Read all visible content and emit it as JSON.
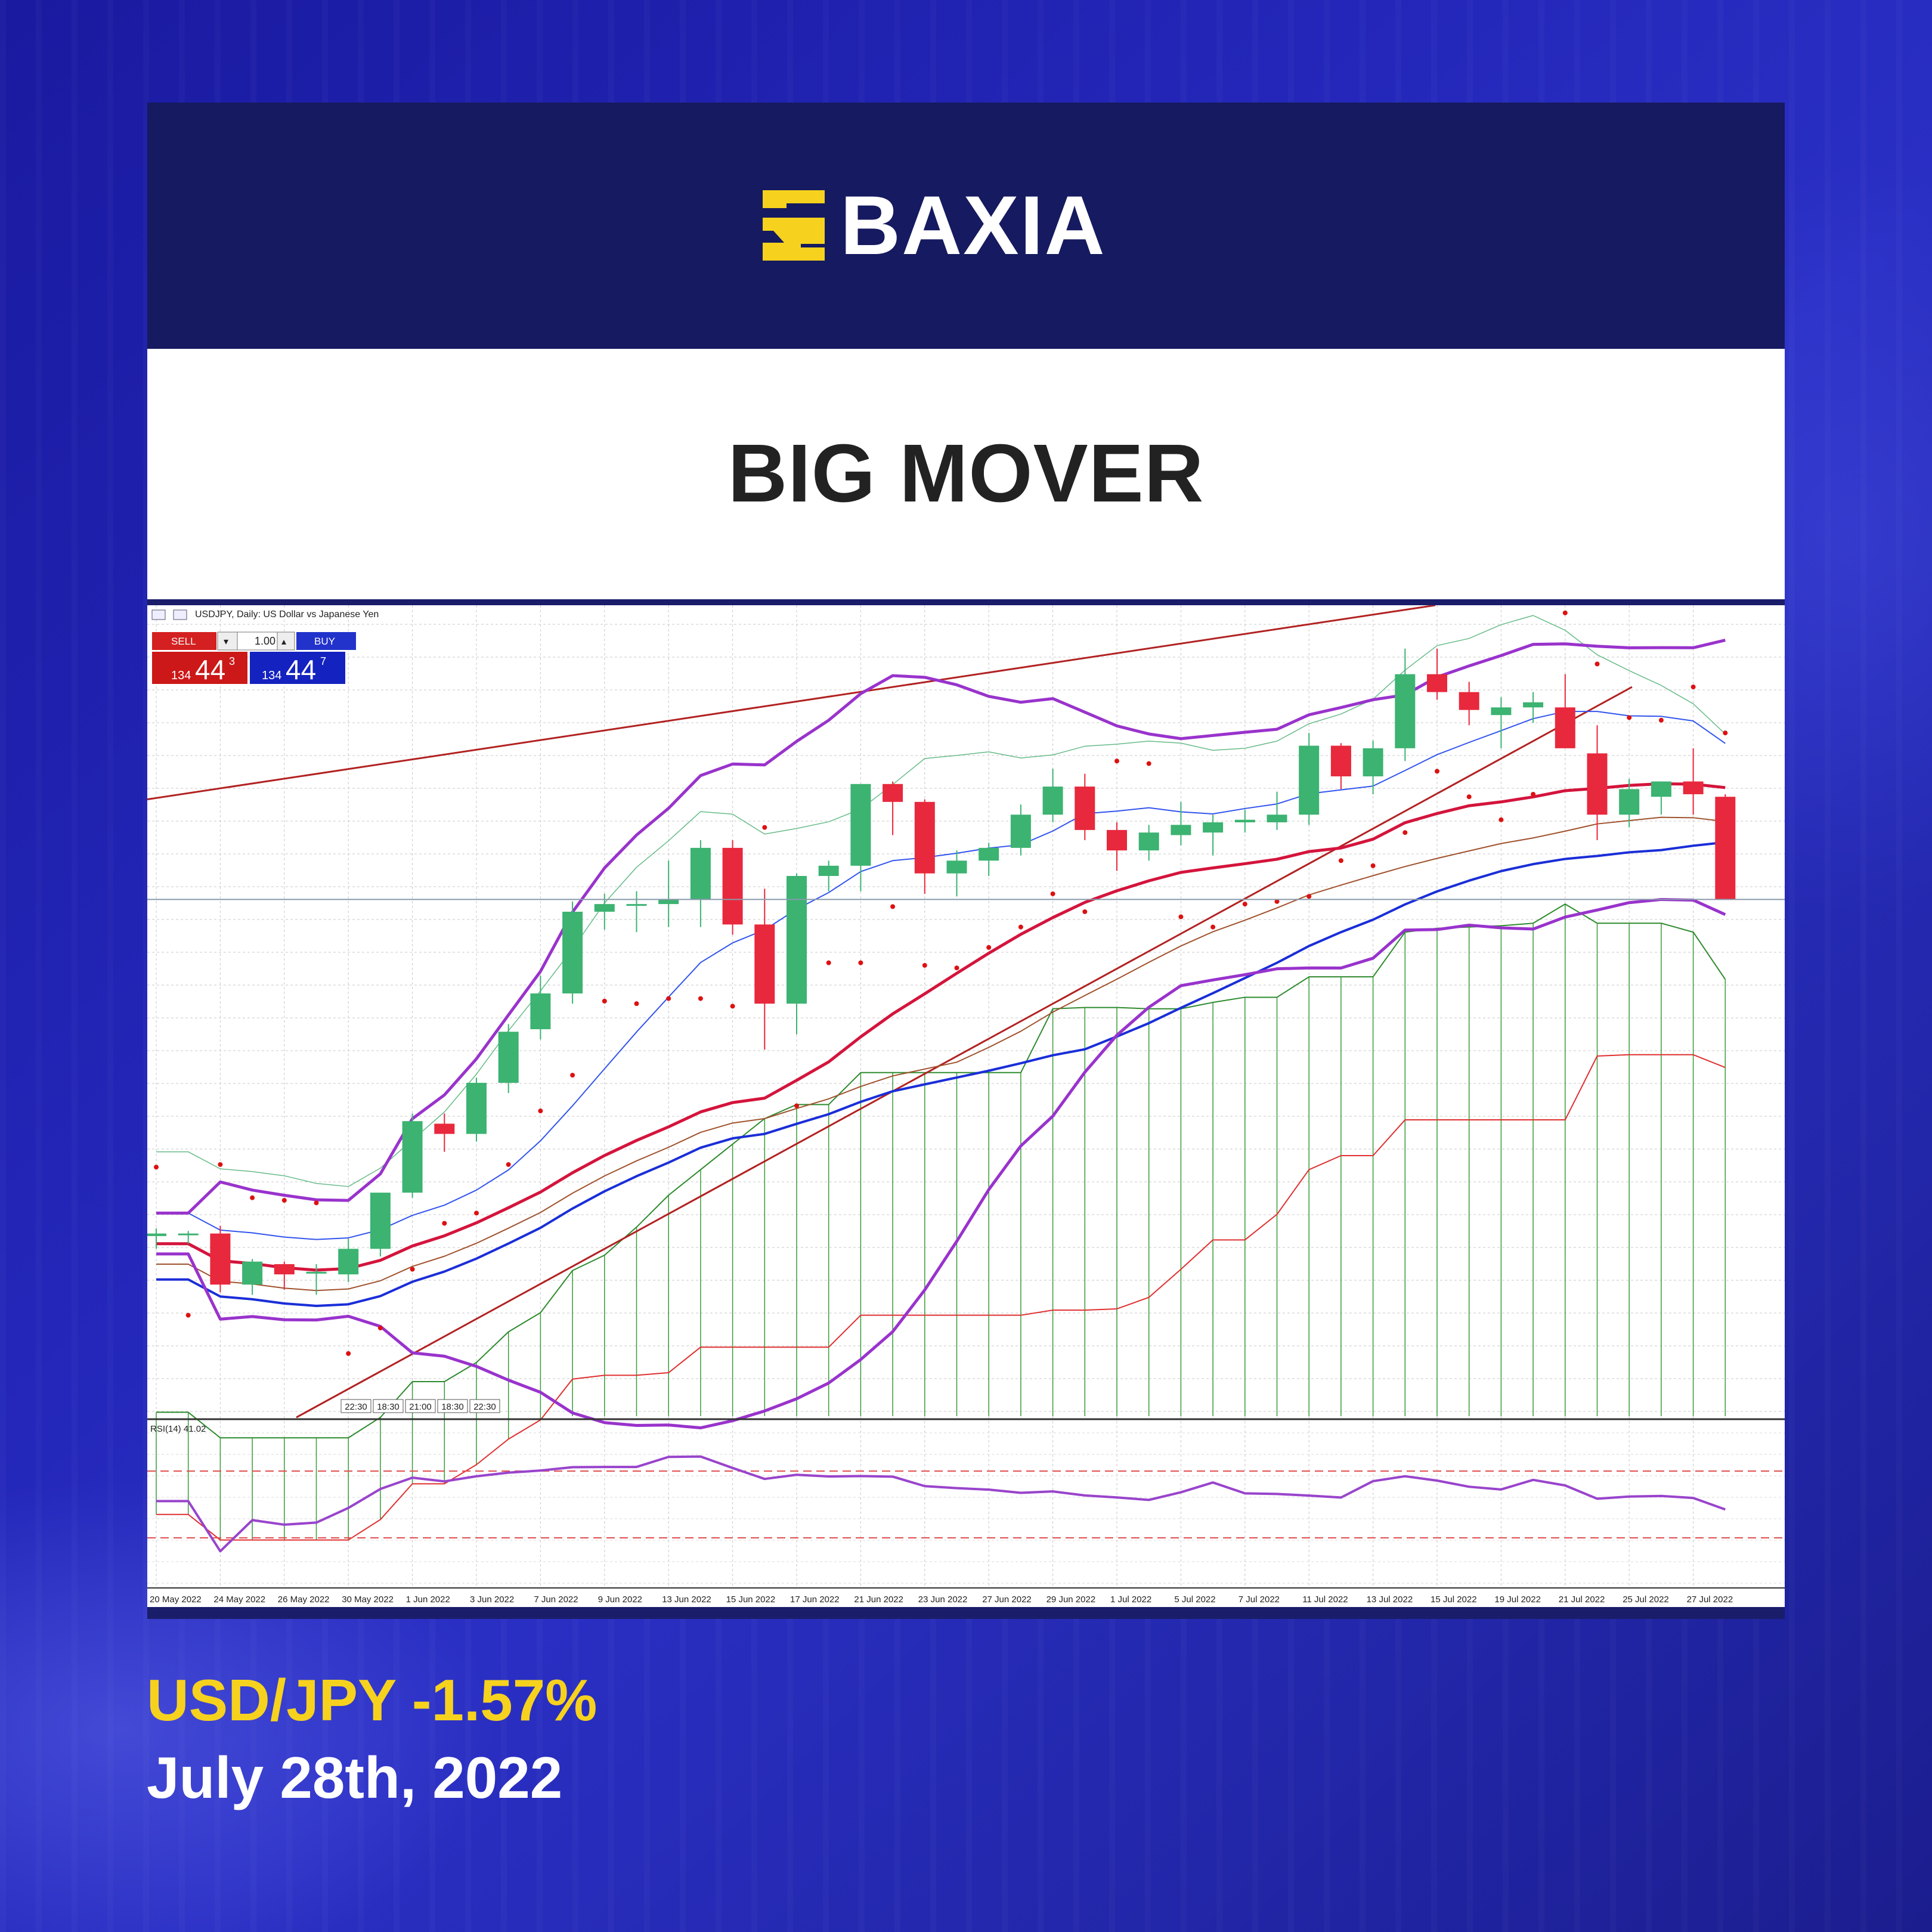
{
  "brand": {
    "name": "BAXIA"
  },
  "banner": {
    "title": "BIG MOVER"
  },
  "footer": {
    "pair_change": "USD/JPY -1.57%",
    "date": "July 28th, 2022"
  },
  "colors": {
    "bull": "#3cb371",
    "bear": "#e8283c",
    "bollinger": "#9933cc",
    "ma_red": "#d4143c",
    "ma_blue": "#1a2ed8",
    "sar": "#dd1111",
    "rsi": "#9944cc",
    "brand_yellow": "#f6d21e"
  },
  "terminal": {
    "symbol_label": "USDJPY, Daily:  US Dollar vs Japanese Yen",
    "sell_label": "SELL",
    "buy_label": "BUY",
    "lot": "1.00",
    "sell_big": "134",
    "sell_main": "44",
    "sell_sup": "3",
    "buy_big": "134",
    "buy_main": "44",
    "buy_sup": "7"
  },
  "chart_data": {
    "type": "candlestick",
    "title": "USDJPY, Daily:  US Dollar vs Japanese Yen",
    "x_tick_labels": [
      "20 May 2022",
      "24 May 2022",
      "26 May 2022",
      "30 May 2022",
      "1 Jun 2022",
      "3 Jun 2022",
      "7 Jun 2022",
      "9 Jun 2022",
      "13 Jun 2022",
      "15 Jun 2022",
      "17 Jun 2022",
      "21 Jun 2022",
      "23 Jun 2022",
      "27 Jun 2022",
      "29 Jun 2022",
      "1 Jul 2022",
      "5 Jul 2022",
      "7 Jul 2022",
      "11 Jul 2022",
      "13 Jul 2022",
      "15 Jul 2022",
      "19 Jul 2022",
      "21 Jul 2022",
      "25 Jul 2022",
      "27 Jul 2022"
    ],
    "session_labels": [
      "22:30",
      "18:30",
      "21:00",
      "18:30",
      "22:30"
    ],
    "candles": [
      {
        "d": "20 May",
        "o": 127.85,
        "h": 128.0,
        "l": 127.6,
        "c": 127.9
      },
      {
        "d": "23 May",
        "o": 127.9,
        "h": 127.95,
        "l": 127.7,
        "c": 127.9
      },
      {
        "d": "24 May",
        "o": 127.9,
        "h": 128.05,
        "l": 126.75,
        "c": 126.9
      },
      {
        "d": "25 May",
        "o": 126.9,
        "h": 127.4,
        "l": 126.7,
        "c": 127.35
      },
      {
        "d": "26 May",
        "o": 127.3,
        "h": 127.35,
        "l": 126.8,
        "c": 127.1
      },
      {
        "d": "27 May",
        "o": 127.15,
        "h": 127.3,
        "l": 126.7,
        "c": 127.15
      },
      {
        "d": "30 May",
        "o": 127.1,
        "h": 127.8,
        "l": 126.95,
        "c": 127.6
      },
      {
        "d": "31 May",
        "o": 127.6,
        "h": 128.7,
        "l": 127.45,
        "c": 128.7
      },
      {
        "d": "1 Jun",
        "o": 128.7,
        "h": 130.25,
        "l": 128.6,
        "c": 130.1
      },
      {
        "d": "2 Jun",
        "o": 130.05,
        "h": 130.25,
        "l": 129.5,
        "c": 129.85
      },
      {
        "d": "3 Jun",
        "o": 129.85,
        "h": 130.95,
        "l": 129.7,
        "c": 130.85
      },
      {
        "d": "6 Jun",
        "o": 130.85,
        "h": 132.0,
        "l": 130.65,
        "c": 131.85
      },
      {
        "d": "7 Jun",
        "o": 131.9,
        "h": 132.95,
        "l": 131.7,
        "c": 132.6
      },
      {
        "d": "8 Jun",
        "o": 132.6,
        "h": 134.4,
        "l": 132.4,
        "c": 134.2
      },
      {
        "d": "9 Jun",
        "o": 134.2,
        "h": 134.55,
        "l": 133.85,
        "c": 134.35
      },
      {
        "d": "10 Jun",
        "o": 134.35,
        "h": 134.6,
        "l": 133.8,
        "c": 134.35
      },
      {
        "d": "13 Jun",
        "o": 134.35,
        "h": 135.2,
        "l": 133.9,
        "c": 134.45
      },
      {
        "d": "14 Jun",
        "o": 134.45,
        "h": 135.6,
        "l": 133.9,
        "c": 135.45
      },
      {
        "d": "15 Jun",
        "o": 135.45,
        "h": 135.6,
        "l": 133.75,
        "c": 133.95
      },
      {
        "d": "16 Jun",
        "o": 133.95,
        "h": 134.65,
        "l": 131.5,
        "c": 132.4
      },
      {
        "d": "17 Jun",
        "o": 132.4,
        "h": 134.95,
        "l": 131.8,
        "c": 134.9
      },
      {
        "d": "20 Jun",
        "o": 134.9,
        "h": 135.2,
        "l": 134.6,
        "c": 135.1
      },
      {
        "d": "21 Jun",
        "o": 135.1,
        "h": 136.7,
        "l": 134.6,
        "c": 136.7
      },
      {
        "d": "22 Jun",
        "o": 136.7,
        "h": 136.75,
        "l": 135.7,
        "c": 136.35
      },
      {
        "d": "23 Jun",
        "o": 136.35,
        "h": 136.4,
        "l": 134.55,
        "c": 134.95
      },
      {
        "d": "24 Jun",
        "o": 134.95,
        "h": 135.4,
        "l": 134.5,
        "c": 135.2
      },
      {
        "d": "27 Jun",
        "o": 135.2,
        "h": 135.55,
        "l": 134.9,
        "c": 135.45
      },
      {
        "d": "28 Jun",
        "o": 135.45,
        "h": 136.3,
        "l": 135.3,
        "c": 136.1
      },
      {
        "d": "29 Jun",
        "o": 136.1,
        "h": 137.0,
        "l": 135.95,
        "c": 136.65
      },
      {
        "d": "30 Jun",
        "o": 136.65,
        "h": 136.9,
        "l": 135.6,
        "c": 135.8
      },
      {
        "d": "1 Jul",
        "o": 135.8,
        "h": 135.95,
        "l": 135.0,
        "c": 135.4
      },
      {
        "d": "4 Jul",
        "o": 135.4,
        "h": 135.9,
        "l": 135.2,
        "c": 135.75
      },
      {
        "d": "5 Jul",
        "o": 135.7,
        "h": 136.35,
        "l": 135.5,
        "c": 135.9
      },
      {
        "d": "6 Jul",
        "o": 135.75,
        "h": 136.1,
        "l": 135.3,
        "c": 135.95
      },
      {
        "d": "7 Jul",
        "o": 135.95,
        "h": 136.2,
        "l": 135.75,
        "c": 136.0
      },
      {
        "d": "8 Jul",
        "o": 135.95,
        "h": 136.55,
        "l": 135.8,
        "c": 136.1
      },
      {
        "d": "11 Jul",
        "o": 136.1,
        "h": 137.7,
        "l": 135.9,
        "c": 137.45
      },
      {
        "d": "12 Jul",
        "o": 137.45,
        "h": 137.5,
        "l": 136.6,
        "c": 136.85
      },
      {
        "d": "13 Jul",
        "o": 136.85,
        "h": 137.55,
        "l": 136.5,
        "c": 137.4
      },
      {
        "d": "14 Jul",
        "o": 137.4,
        "h": 139.35,
        "l": 137.15,
        "c": 138.85
      },
      {
        "d": "15 Jul",
        "o": 138.85,
        "h": 139.35,
        "l": 138.35,
        "c": 138.5
      },
      {
        "d": "18 Jul",
        "o": 138.5,
        "h": 138.7,
        "l": 137.85,
        "c": 138.15
      },
      {
        "d": "19 Jul",
        "o": 138.05,
        "h": 138.4,
        "l": 137.4,
        "c": 138.2
      },
      {
        "d": "20 Jul",
        "o": 138.2,
        "h": 138.5,
        "l": 137.9,
        "c": 138.3
      },
      {
        "d": "21 Jul",
        "o": 138.2,
        "h": 138.85,
        "l": 137.4,
        "c": 137.4
      },
      {
        "d": "22 Jul",
        "o": 137.3,
        "h": 137.85,
        "l": 135.6,
        "c": 136.1
      },
      {
        "d": "25 Jul",
        "o": 136.1,
        "h": 136.8,
        "l": 135.85,
        "c": 136.6
      },
      {
        "d": "26 Jul",
        "o": 136.45,
        "h": 136.75,
        "l": 136.1,
        "c": 136.75
      },
      {
        "d": "27 Jul",
        "o": 136.75,
        "h": 137.4,
        "l": 136.1,
        "c": 136.5
      },
      {
        "d": "28 Jul",
        "o": 136.45,
        "h": 136.5,
        "l": 134.45,
        "c": 134.45
      }
    ],
    "rsi": {
      "label": "RSI(14) 41.02",
      "levels": [
        70,
        30
      ],
      "range": [
        0,
        100
      ]
    },
    "current_price": 134.44
  }
}
